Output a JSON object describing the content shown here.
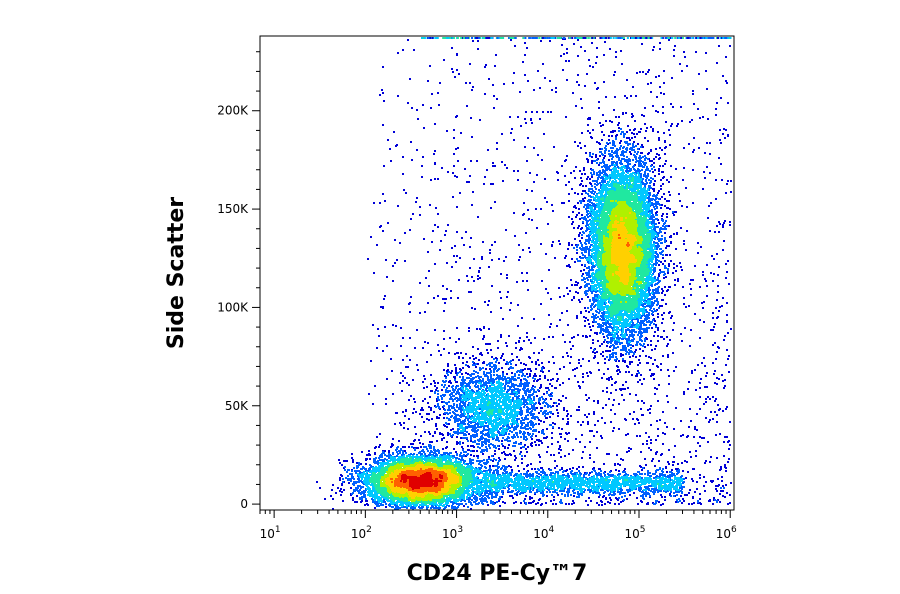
{
  "chart_data": {
    "type": "scatter",
    "plot_style": "pseudocolor density dot plot (flow cytometry)",
    "xlabel": "CD24 PE-Cy™7",
    "ylabel": "Side Scatter",
    "x_scale": "log",
    "xlim": [
      7,
      1100000
    ],
    "ylim": [
      -3000,
      238000
    ],
    "x_ticks": [
      {
        "value": 10,
        "base": "10",
        "exp": "1"
      },
      {
        "value": 100,
        "base": "10",
        "exp": "2"
      },
      {
        "value": 1000,
        "base": "10",
        "exp": "3"
      },
      {
        "value": 10000,
        "base": "10",
        "exp": "4"
      },
      {
        "value": 100000,
        "base": "10",
        "exp": "5"
      },
      {
        "value": 1000000,
        "base": "10",
        "exp": "6"
      }
    ],
    "y_ticks": [
      {
        "value": 0,
        "label": "0"
      },
      {
        "value": 50000,
        "label": "50K"
      },
      {
        "value": 100000,
        "label": "100K"
      },
      {
        "value": 150000,
        "label": "150K"
      },
      {
        "value": 200000,
        "label": "200K"
      }
    ],
    "density_colors": [
      "#0000d8",
      "#0060ff",
      "#00c8ff",
      "#20e8a0",
      "#b0f000",
      "#ffd000",
      "#ff6000",
      "#e00000"
    ],
    "populations": [
      {
        "name": "CD24 low, low SSC",
        "x_center": 400,
        "y_center": 12000,
        "x_spread_decades": 0.3,
        "y_spread": 6000,
        "relative_size": 0.34
      },
      {
        "name": "CD24 intermediate, intermediate SSC",
        "x_center": 2500,
        "y_center": 50000,
        "x_spread_decades": 0.3,
        "y_spread": 11000,
        "relative_size": 0.09
      },
      {
        "name": "CD24 high, high SSC",
        "x_center": 65000,
        "y_center": 130000,
        "x_spread_decades": 0.18,
        "y_spread": 22000,
        "relative_size": 0.42
      },
      {
        "name": "CD24 streak, low SSC",
        "x_range": [
          2000,
          300000
        ],
        "y_center": 11000,
        "y_spread": 3000,
        "relative_size": 0.07
      },
      {
        "name": "scattered events",
        "x_range": [
          100,
          1000000
        ],
        "y_range": [
          0,
          238000
        ],
        "relative_size": 0.08
      }
    ],
    "grid": false,
    "legend": "none"
  }
}
